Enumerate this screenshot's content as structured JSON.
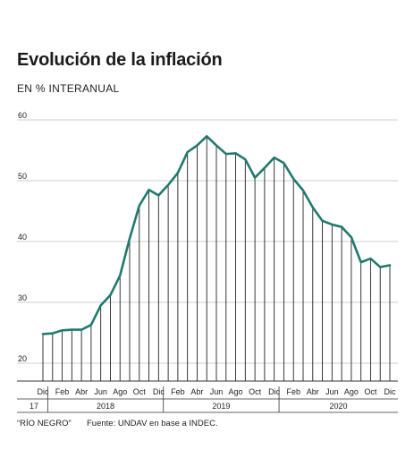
{
  "header": {
    "title": "Evolución de la inflación",
    "subtitle": "EN % INTERANUAL"
  },
  "footer": {
    "credit": "“RÍO NEGRO”",
    "source": "Fuente: UNDAV en base a INDEC."
  },
  "colors": {
    "line": "#1f7a6d",
    "grid": "#bdbdbd",
    "bars": "#222222",
    "text": "#222222"
  },
  "chart_data": {
    "type": "line",
    "title": "Evolución de la inflación",
    "subtitle": "EN % INTERANUAL",
    "ylim": [
      20,
      60
    ],
    "yticks": [
      20,
      30,
      40,
      50,
      60
    ],
    "x": [
      "Dic 2017",
      "Ene 2018",
      "Feb 2018",
      "Mar 2018",
      "Abr 2018",
      "May 2018",
      "Jun 2018",
      "Jul 2018",
      "Ago 2018",
      "Sep 2018",
      "Oct 2018",
      "Nov 2018",
      "Dic 2018",
      "Ene 2019",
      "Feb 2019",
      "Mar 2019",
      "Abr 2019",
      "May 2019",
      "Jun 2019",
      "Jul 2019",
      "Ago 2019",
      "Sep 2019",
      "Oct 2019",
      "Nov 2019",
      "Dic 2019",
      "Ene 2020",
      "Feb 2020",
      "Mar 2020",
      "Abr 2020",
      "May 2020",
      "Jun 2020",
      "Jul 2020",
      "Ago 2020",
      "Sep 2020",
      "Oct 2020",
      "Nov 2020",
      "Dic 2020"
    ],
    "series": [
      {
        "values": [
          24.8,
          24.9,
          25.4,
          25.5,
          25.5,
          26.3,
          29.5,
          31.2,
          34.4,
          40.5,
          45.9,
          48.5,
          47.6,
          49.3,
          51.3,
          54.7,
          55.8,
          57.3,
          55.8,
          54.4,
          54.5,
          53.5,
          50.5,
          52.1,
          53.8,
          52.9,
          50.3,
          48.4,
          45.6,
          43.4,
          42.8,
          42.4,
          40.7,
          36.6,
          37.2,
          35.8,
          36.1
        ]
      }
    ],
    "x_tick_labels": [
      "Dic",
      "Feb",
      "Abr",
      "Jun",
      "Ago",
      "Oct",
      "Dic",
      "Feb",
      "Abr",
      "Jun",
      "Ago",
      "Oct",
      "Dic",
      "Feb",
      "Abr",
      "Jun",
      "Ago",
      "Oct",
      "Dic"
    ],
    "x_tick_months": [
      "Dic 2017",
      "Feb 2018",
      "Abr 2018",
      "Jun 2018",
      "Ago 2018",
      "Oct 2018",
      "Dic 2018",
      "Feb 2019",
      "Abr 2019",
      "Jun 2019",
      "Ago 2019",
      "Oct 2019",
      "Dic 2019",
      "Feb 2020",
      "Abr 2020",
      "Jun 2020",
      "Ago 2020",
      "Oct 2020",
      "Dic 2020"
    ],
    "year_labels": [
      "17",
      "2018",
      "2019",
      "2020"
    ],
    "grid": true,
    "legend": "none"
  }
}
